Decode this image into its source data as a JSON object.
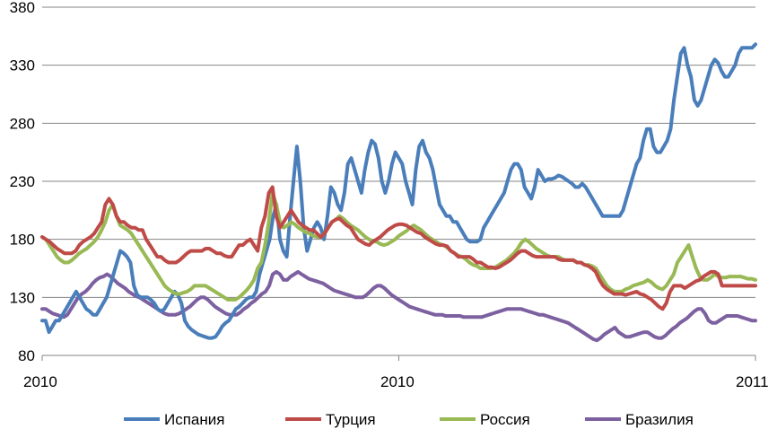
{
  "chart_data": {
    "type": "line",
    "title": "",
    "xlabel": "",
    "ylabel": "",
    "ylim": [
      80,
      380
    ],
    "y_ticks": [
      80,
      130,
      180,
      230,
      280,
      330,
      380
    ],
    "x_tick_labels": [
      "2010",
      "2010",
      "2011"
    ],
    "grid": "horizontal",
    "legend_position": "bottom",
    "series": [
      {
        "name": "Испания",
        "color": "#4a7ebb",
        "values": [
          110,
          110,
          100,
          105,
          110,
          110,
          115,
          120,
          125,
          130,
          135,
          130,
          125,
          120,
          118,
          115,
          115,
          120,
          125,
          130,
          140,
          150,
          160,
          170,
          168,
          165,
          160,
          140,
          132,
          130,
          130,
          130,
          128,
          125,
          120,
          118,
          120,
          125,
          130,
          135,
          132,
          125,
          110,
          105,
          102,
          100,
          98,
          97,
          96,
          95,
          95,
          96,
          100,
          105,
          108,
          110,
          115,
          120,
          122,
          125,
          128,
          130,
          130,
          135,
          150,
          160,
          170,
          180,
          200,
          210,
          180,
          170,
          165,
          200,
          230,
          260,
          230,
          190,
          170,
          180,
          190,
          195,
          190,
          180,
          200,
          225,
          220,
          210,
          205,
          220,
          245,
          250,
          240,
          230,
          220,
          240,
          255,
          265,
          262,
          250,
          230,
          220,
          230,
          245,
          255,
          250,
          245,
          230,
          220,
          210,
          240,
          260,
          265,
          255,
          250,
          240,
          225,
          210,
          205,
          200,
          200,
          195,
          195,
          190,
          185,
          180,
          178,
          178,
          178,
          180,
          190,
          195,
          200,
          205,
          210,
          215,
          220,
          230,
          240,
          245,
          245,
          240,
          225,
          220,
          215,
          225,
          240,
          235,
          230,
          232,
          232,
          233,
          235,
          234,
          232,
          230,
          228,
          225,
          225,
          228,
          225,
          220,
          215,
          210,
          205,
          200,
          200,
          200,
          200,
          200,
          200,
          205,
          215,
          225,
          235,
          245,
          250,
          265,
          275,
          275,
          260,
          255,
          255,
          260,
          265,
          275,
          300,
          320,
          340,
          345,
          330,
          320,
          300,
          295,
          300,
          310,
          320,
          330,
          335,
          332,
          325,
          320,
          320,
          325,
          330,
          340,
          345,
          345,
          345,
          345,
          348
        ]
      },
      {
        "name": "Турция",
        "color": "#be4b48",
        "values": [
          182,
          180,
          178,
          175,
          172,
          170,
          168,
          168,
          168,
          170,
          175,
          178,
          180,
          182,
          185,
          190,
          195,
          210,
          215,
          210,
          200,
          195,
          195,
          192,
          190,
          190,
          188,
          188,
          180,
          175,
          170,
          165,
          165,
          162,
          160,
          160,
          160,
          162,
          165,
          168,
          170,
          170,
          170,
          170,
          172,
          172,
          170,
          168,
          168,
          166,
          165,
          165,
          170,
          175,
          175,
          178,
          180,
          175,
          170,
          190,
          200,
          220,
          225,
          200,
          190,
          195,
          200,
          205,
          200,
          195,
          192,
          190,
          188,
          188,
          185,
          182,
          185,
          190,
          195,
          197,
          198,
          195,
          192,
          190,
          185,
          180,
          178,
          176,
          175,
          178,
          180,
          182,
          185,
          188,
          190,
          192,
          193,
          193,
          192,
          190,
          188,
          186,
          185,
          182,
          180,
          178,
          176,
          175,
          175,
          174,
          170,
          168,
          165,
          165,
          165,
          165,
          163,
          160,
          160,
          158,
          156,
          156,
          155,
          156,
          158,
          160,
          162,
          165,
          168,
          170,
          170,
          168,
          166,
          165,
          165,
          165,
          165,
          165,
          165,
          163,
          162,
          162,
          162,
          162,
          160,
          160,
          158,
          157,
          155,
          152,
          145,
          140,
          137,
          135,
          133,
          133,
          133,
          132,
          133,
          134,
          135,
          133,
          132,
          130,
          128,
          125,
          122,
          120,
          125,
          135,
          140,
          140,
          140,
          138,
          140,
          142,
          144,
          145,
          148,
          150,
          152,
          152,
          150,
          140,
          140,
          140,
          140,
          140,
          140,
          140,
          140,
          140,
          140
        ]
      },
      {
        "name": "Россия",
        "color": "#98b954",
        "values": [
          182,
          180,
          175,
          170,
          165,
          162,
          160,
          160,
          162,
          165,
          168,
          170,
          172,
          175,
          178,
          182,
          188,
          195,
          205,
          210,
          200,
          192,
          190,
          188,
          185,
          180,
          175,
          170,
          165,
          160,
          155,
          150,
          145,
          140,
          137,
          135,
          133,
          133,
          134,
          135,
          137,
          140,
          140,
          140,
          140,
          138,
          136,
          134,
          132,
          130,
          128,
          128,
          128,
          130,
          133,
          136,
          140,
          145,
          155,
          160,
          175,
          195,
          220,
          210,
          195,
          190,
          192,
          195,
          193,
          190,
          188,
          186,
          185,
          183,
          182,
          182,
          185,
          190,
          195,
          197,
          200,
          198,
          195,
          192,
          190,
          188,
          185,
          182,
          180,
          178,
          178,
          176,
          175,
          176,
          178,
          180,
          183,
          185,
          187,
          190,
          192,
          190,
          188,
          185,
          182,
          180,
          178,
          176,
          175,
          173,
          170,
          168,
          166,
          165,
          163,
          160,
          158,
          157,
          155,
          155,
          155,
          155,
          156,
          158,
          160,
          162,
          165,
          168,
          172,
          177,
          180,
          178,
          175,
          172,
          170,
          168,
          166,
          165,
          165,
          165,
          163,
          162,
          162,
          162,
          160,
          160,
          158,
          158,
          157,
          155,
          150,
          145,
          140,
          137,
          135,
          135,
          135,
          137,
          138,
          140,
          141,
          142,
          143,
          145,
          143,
          140,
          138,
          137,
          140,
          145,
          150,
          160,
          165,
          170,
          175,
          165,
          155,
          148,
          145,
          145,
          147,
          150,
          148,
          147,
          147,
          148,
          148,
          148,
          148,
          147,
          146,
          146,
          145
        ]
      },
      {
        "name": "Бразилия",
        "color": "#7d60a0",
        "values": [
          120,
          120,
          118,
          116,
          115,
          114,
          113,
          115,
          120,
          125,
          130,
          133,
          135,
          138,
          142,
          145,
          147,
          148,
          150,
          148,
          145,
          142,
          140,
          138,
          135,
          133,
          131,
          130,
          128,
          126,
          124,
          122,
          120,
          118,
          116,
          115,
          115,
          115,
          116,
          118,
          120,
          122,
          125,
          128,
          130,
          130,
          128,
          125,
          122,
          120,
          118,
          116,
          115,
          115,
          115,
          117,
          120,
          122,
          125,
          127,
          130,
          133,
          135,
          140,
          150,
          152,
          150,
          145,
          145,
          148,
          150,
          152,
          150,
          148,
          146,
          145,
          144,
          143,
          142,
          140,
          138,
          136,
          135,
          134,
          133,
          132,
          131,
          130,
          130,
          130,
          132,
          135,
          138,
          140,
          140,
          138,
          135,
          132,
          130,
          128,
          126,
          124,
          122,
          121,
          120,
          119,
          118,
          117,
          116,
          115,
          115,
          115,
          114,
          114,
          114,
          114,
          114,
          113,
          113,
          113,
          113,
          113,
          113,
          114,
          115,
          116,
          117,
          118,
          119,
          120,
          120,
          120,
          120,
          120,
          119,
          118,
          117,
          116,
          115,
          115,
          114,
          113,
          112,
          111,
          110,
          109,
          108,
          106,
          104,
          102,
          100,
          98,
          96,
          94,
          93,
          95,
          98,
          100,
          102,
          104,
          100,
          98,
          96,
          96,
          97,
          98,
          99,
          100,
          100,
          98,
          96,
          95,
          95,
          97,
          100,
          103,
          105,
          108,
          110,
          112,
          115,
          118,
          120,
          120,
          116,
          110,
          108,
          108,
          110,
          112,
          114,
          114,
          114,
          114,
          113,
          112,
          111,
          110,
          110
        ]
      }
    ]
  }
}
